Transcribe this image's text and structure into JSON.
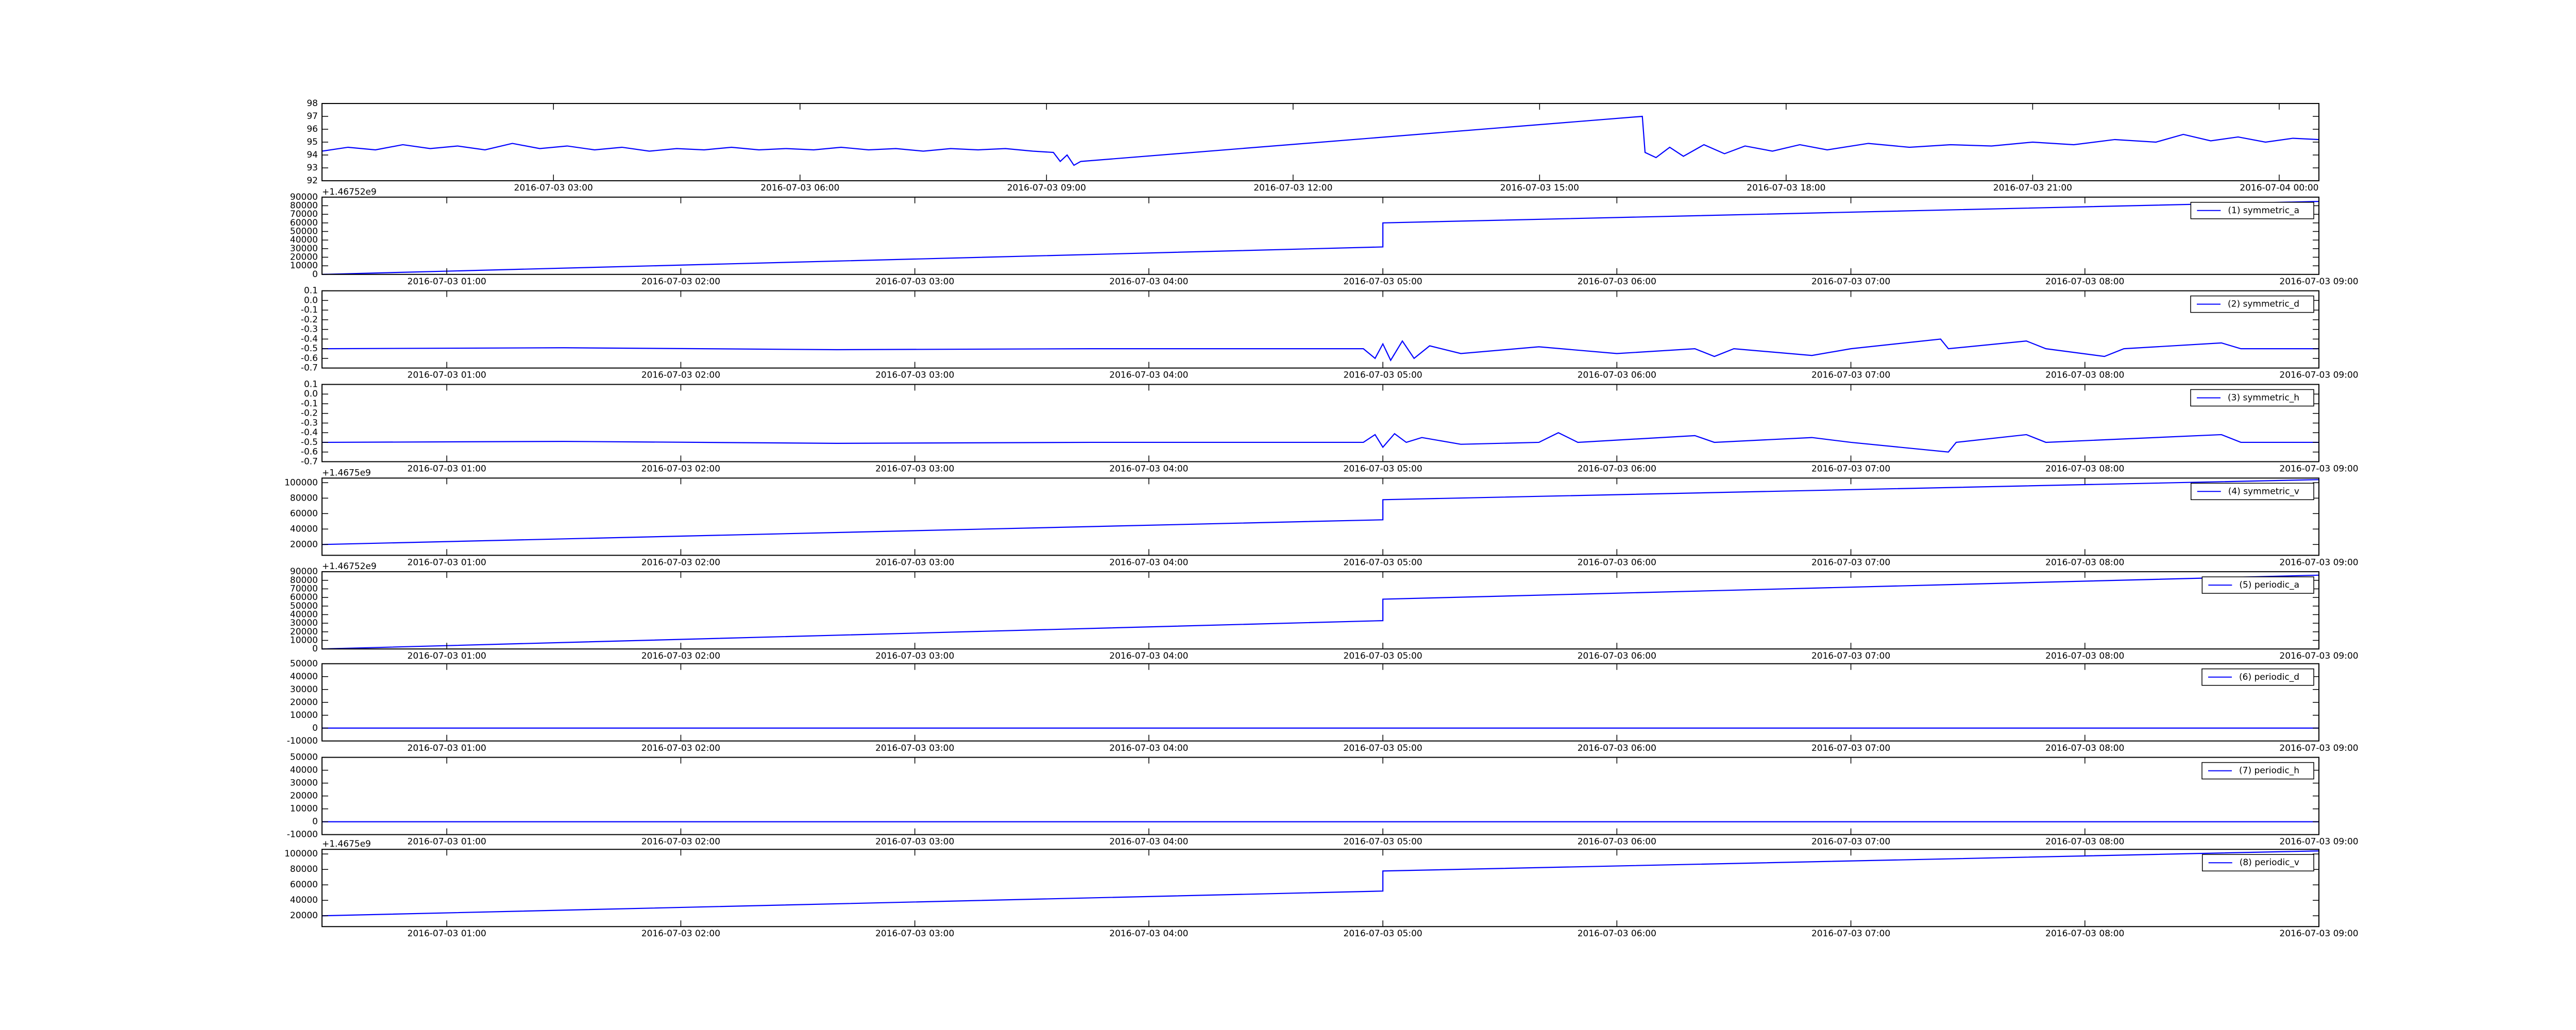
{
  "chart_data": [
    {
      "type": "line",
      "x": [
        "2016-07-03 00:11",
        "2016-07-03 00:30",
        "2016-07-03 00:50",
        "2016-07-03 01:10",
        "2016-07-03 01:30",
        "2016-07-03 01:50",
        "2016-07-03 02:10",
        "2016-07-03 02:30",
        "2016-07-03 02:50",
        "2016-07-03 03:10",
        "2016-07-03 03:30",
        "2016-07-03 03:50",
        "2016-07-03 04:10",
        "2016-07-03 04:30",
        "2016-07-03 04:50",
        "2016-07-03 05:10",
        "2016-07-03 05:30",
        "2016-07-03 05:50",
        "2016-07-03 06:10",
        "2016-07-03 06:30",
        "2016-07-03 06:50",
        "2016-07-03 07:10",
        "2016-07-03 07:30",
        "2016-07-03 07:50",
        "2016-07-03 08:10",
        "2016-07-03 08:30",
        "2016-07-03 08:50",
        "2016-07-03 09:05",
        "2016-07-03 09:10",
        "2016-07-03 09:15",
        "2016-07-03 09:20",
        "2016-07-03 09:25",
        "2016-07-03 16:15",
        "2016-07-03 16:17",
        "2016-07-03 16:25",
        "2016-07-03 16:35",
        "2016-07-03 16:45",
        "2016-07-03 17:00",
        "2016-07-03 17:15",
        "2016-07-03 17:30",
        "2016-07-03 17:50",
        "2016-07-03 18:10",
        "2016-07-03 18:30",
        "2016-07-03 19:00",
        "2016-07-03 19:30",
        "2016-07-03 20:00",
        "2016-07-03 20:30",
        "2016-07-03 21:00",
        "2016-07-03 21:30",
        "2016-07-03 22:00",
        "2016-07-03 22:30",
        "2016-07-03 22:50",
        "2016-07-03 23:10",
        "2016-07-03 23:30",
        "2016-07-03 23:50",
        "2016-07-04 00:10",
        "2016-07-04 00:29"
      ],
      "series": [
        {
          "color": "#0000ff",
          "values": [
            94.3,
            94.6,
            94.4,
            94.8,
            94.5,
            94.7,
            94.4,
            94.9,
            94.5,
            94.7,
            94.4,
            94.6,
            94.3,
            94.5,
            94.4,
            94.6,
            94.4,
            94.5,
            94.4,
            94.6,
            94.4,
            94.5,
            94.3,
            94.5,
            94.4,
            94.5,
            94.3,
            94.2,
            93.5,
            94.0,
            93.2,
            93.5,
            97.0,
            94.2,
            93.8,
            94.6,
            93.9,
            94.8,
            94.1,
            94.7,
            94.3,
            94.8,
            94.4,
            94.9,
            94.6,
            94.8,
            94.7,
            95.0,
            94.8,
            95.2,
            95.0,
            95.6,
            95.1,
            95.4,
            95.0,
            95.3,
            95.2
          ]
        }
      ],
      "xlim": [
        "2016-07-03 00:11",
        "2016-07-04 00:29"
      ],
      "xticks": [
        "2016-07-03 03:00",
        "2016-07-03 06:00",
        "2016-07-03 09:00",
        "2016-07-03 12:00",
        "2016-07-03 15:00",
        "2016-07-03 18:00",
        "2016-07-03 21:00",
        "2016-07-04 00:00"
      ],
      "ylim": [
        92,
        98
      ],
      "yticks": [
        92,
        93,
        94,
        95,
        96,
        97,
        98
      ]
    },
    {
      "type": "line",
      "offset_text": "+1.46752e9",
      "legend": "upper right",
      "x": [
        "2016-07-03 00:28",
        "2016-07-03 05:00",
        "2016-07-03 05:00",
        "2016-07-03 09:00"
      ],
      "series": [
        {
          "name": "(1) symmetric_a",
          "color": "#0000ff",
          "values": [
            0,
            32000,
            60000,
            85000
          ]
        }
      ],
      "xlim": [
        "2016-07-03 00:28",
        "2016-07-03 09:00"
      ],
      "xticks": [
        "2016-07-03 01:00",
        "2016-07-03 02:00",
        "2016-07-03 03:00",
        "2016-07-03 04:00",
        "2016-07-03 05:00",
        "2016-07-03 06:00",
        "2016-07-03 07:00",
        "2016-07-03 08:00",
        "2016-07-03 09:00"
      ],
      "ylim": [
        0,
        90000
      ],
      "yticks": [
        0,
        10000,
        20000,
        30000,
        40000,
        50000,
        60000,
        70000,
        80000,
        90000
      ]
    },
    {
      "type": "line",
      "legend": "upper right",
      "x": [
        "2016-07-03 00:28",
        "2016-07-03 01:30",
        "2016-07-03 02:40",
        "2016-07-03 03:45",
        "2016-07-03 04:55",
        "2016-07-03 04:58",
        "2016-07-03 05:00",
        "2016-07-03 05:02",
        "2016-07-03 05:05",
        "2016-07-03 05:08",
        "2016-07-03 05:12",
        "2016-07-03 05:20",
        "2016-07-03 05:40",
        "2016-07-03 06:00",
        "2016-07-03 06:20",
        "2016-07-03 06:25",
        "2016-07-03 06:30",
        "2016-07-03 06:50",
        "2016-07-03 07:00",
        "2016-07-03 07:23",
        "2016-07-03 07:25",
        "2016-07-03 07:45",
        "2016-07-03 07:50",
        "2016-07-03 08:05",
        "2016-07-03 08:10",
        "2016-07-03 08:35",
        "2016-07-03 08:40",
        "2016-07-03 09:00"
      ],
      "series": [
        {
          "name": "(2) symmetric_d",
          "color": "#0000ff",
          "values": [
            -0.5,
            -0.49,
            -0.51,
            -0.5,
            -0.5,
            -0.6,
            -0.45,
            -0.62,
            -0.42,
            -0.6,
            -0.47,
            -0.55,
            -0.48,
            -0.55,
            -0.5,
            -0.58,
            -0.5,
            -0.57,
            -0.5,
            -0.4,
            -0.5,
            -0.42,
            -0.5,
            -0.58,
            -0.5,
            -0.44,
            -0.5,
            -0.5
          ]
        }
      ],
      "xlim": [
        "2016-07-03 00:28",
        "2016-07-03 09:00"
      ],
      "xticks": [
        "2016-07-03 01:00",
        "2016-07-03 02:00",
        "2016-07-03 03:00",
        "2016-07-03 04:00",
        "2016-07-03 05:00",
        "2016-07-03 06:00",
        "2016-07-03 07:00",
        "2016-07-03 08:00",
        "2016-07-03 09:00"
      ],
      "ylim": [
        -0.7,
        0.1
      ],
      "yticks": [
        -0.7,
        -0.6,
        -0.5,
        -0.4,
        -0.3,
        -0.2,
        -0.1,
        {
          "value": 0,
          "label": "0.0"
        },
        0.1
      ]
    },
    {
      "type": "line",
      "legend": "upper right",
      "x": [
        "2016-07-03 00:28",
        "2016-07-03 01:30",
        "2016-07-03 02:40",
        "2016-07-03 03:45",
        "2016-07-03 04:55",
        "2016-07-03 04:58",
        "2016-07-03 05:00",
        "2016-07-03 05:03",
        "2016-07-03 05:06",
        "2016-07-03 05:10",
        "2016-07-03 05:20",
        "2016-07-03 05:40",
        "2016-07-03 05:45",
        "2016-07-03 05:50",
        "2016-07-03 06:20",
        "2016-07-03 06:25",
        "2016-07-03 06:50",
        "2016-07-03 07:00",
        "2016-07-03 07:25",
        "2016-07-03 07:27",
        "2016-07-03 07:45",
        "2016-07-03 07:50",
        "2016-07-03 08:35",
        "2016-07-03 08:40",
        "2016-07-03 09:00"
      ],
      "series": [
        {
          "name": "(3) symmetric_h",
          "color": "#0000ff",
          "values": [
            -0.5,
            -0.49,
            -0.51,
            -0.5,
            -0.5,
            -0.42,
            -0.55,
            -0.41,
            -0.5,
            -0.45,
            -0.52,
            -0.5,
            -0.4,
            -0.5,
            -0.43,
            -0.5,
            -0.45,
            -0.5,
            -0.6,
            -0.5,
            -0.42,
            -0.5,
            -0.42,
            -0.5,
            -0.5
          ]
        }
      ],
      "xlim": [
        "2016-07-03 00:28",
        "2016-07-03 09:00"
      ],
      "xticks": [
        "2016-07-03 01:00",
        "2016-07-03 02:00",
        "2016-07-03 03:00",
        "2016-07-03 04:00",
        "2016-07-03 05:00",
        "2016-07-03 06:00",
        "2016-07-03 07:00",
        "2016-07-03 08:00",
        "2016-07-03 09:00"
      ],
      "ylim": [
        -0.7,
        0.1
      ],
      "yticks": [
        -0.7,
        -0.6,
        -0.5,
        -0.4,
        -0.3,
        -0.2,
        -0.1,
        {
          "value": 0,
          "label": "0.0"
        },
        0.1
      ]
    },
    {
      "type": "line",
      "offset_text": "+1.4675e9",
      "legend": "upper right",
      "x": [
        "2016-07-03 00:28",
        "2016-07-03 05:00",
        "2016-07-03 05:00",
        "2016-07-03 09:00"
      ],
      "series": [
        {
          "name": "(4) symmetric_v",
          "color": "#0000ff",
          "values": [
            20000,
            52000,
            78000,
            104000
          ]
        }
      ],
      "xlim": [
        "2016-07-03 00:28",
        "2016-07-03 09:00"
      ],
      "xticks": [
        "2016-07-03 01:00",
        "2016-07-03 02:00",
        "2016-07-03 03:00",
        "2016-07-03 04:00",
        "2016-07-03 05:00",
        "2016-07-03 06:00",
        "2016-07-03 07:00",
        "2016-07-03 08:00",
        "2016-07-03 09:00"
      ],
      "ylim": [
        6000,
        106000
      ],
      "yticks": [
        20000,
        40000,
        60000,
        80000,
        100000
      ]
    },
    {
      "type": "line",
      "offset_text": "+1.46752e9",
      "legend": "upper right",
      "x": [
        "2016-07-03 00:28",
        "2016-07-03 05:00",
        "2016-07-03 05:00",
        "2016-07-03 09:00"
      ],
      "series": [
        {
          "name": "(5) periodic_a",
          "color": "#0000ff",
          "values": [
            0,
            33000,
            58000,
            86000
          ]
        }
      ],
      "xlim": [
        "2016-07-03 00:28",
        "2016-07-03 09:00"
      ],
      "xticks": [
        "2016-07-03 01:00",
        "2016-07-03 02:00",
        "2016-07-03 03:00",
        "2016-07-03 04:00",
        "2016-07-03 05:00",
        "2016-07-03 06:00",
        "2016-07-03 07:00",
        "2016-07-03 08:00",
        "2016-07-03 09:00"
      ],
      "ylim": [
        0,
        90000
      ],
      "yticks": [
        0,
        10000,
        20000,
        30000,
        40000,
        50000,
        60000,
        70000,
        80000,
        90000
      ]
    },
    {
      "type": "line",
      "legend": "upper right",
      "x": [
        "2016-07-03 00:28",
        "2016-07-03 09:00"
      ],
      "series": [
        {
          "name": "(6) periodic_d",
          "color": "#0000ff",
          "values": [
            0,
            0
          ]
        }
      ],
      "xlim": [
        "2016-07-03 00:28",
        "2016-07-03 09:00"
      ],
      "xticks": [
        "2016-07-03 01:00",
        "2016-07-03 02:00",
        "2016-07-03 03:00",
        "2016-07-03 04:00",
        "2016-07-03 05:00",
        "2016-07-03 06:00",
        "2016-07-03 07:00",
        "2016-07-03 08:00",
        "2016-07-03 09:00"
      ],
      "ylim": [
        -10000,
        50000
      ],
      "yticks": [
        -10000,
        0,
        10000,
        20000,
        30000,
        40000,
        50000
      ]
    },
    {
      "type": "line",
      "legend": "upper right",
      "x": [
        "2016-07-03 00:28",
        "2016-07-03 09:00"
      ],
      "series": [
        {
          "name": "(7) periodic_h",
          "color": "#0000ff",
          "values": [
            0,
            0
          ]
        }
      ],
      "xlim": [
        "2016-07-03 00:28",
        "2016-07-03 09:00"
      ],
      "xticks": [
        "2016-07-03 01:00",
        "2016-07-03 02:00",
        "2016-07-03 03:00",
        "2016-07-03 04:00",
        "2016-07-03 05:00",
        "2016-07-03 06:00",
        "2016-07-03 07:00",
        "2016-07-03 08:00",
        "2016-07-03 09:00"
      ],
      "ylim": [
        -10000,
        50000
      ],
      "yticks": [
        -10000,
        0,
        10000,
        20000,
        30000,
        40000,
        50000
      ]
    },
    {
      "type": "line",
      "offset_text": "+1.4675e9",
      "legend": "upper right",
      "x": [
        "2016-07-03 00:28",
        "2016-07-03 05:00",
        "2016-07-03 05:00",
        "2016-07-03 09:00"
      ],
      "series": [
        {
          "name": "(8) periodic_v",
          "color": "#0000ff",
          "values": [
            20000,
            52000,
            78000,
            104000
          ]
        }
      ],
      "xlim": [
        "2016-07-03 00:28",
        "2016-07-03 09:00"
      ],
      "xticks": [
        "2016-07-03 01:00",
        "2016-07-03 02:00",
        "2016-07-03 03:00",
        "2016-07-03 04:00",
        "2016-07-03 05:00",
        "2016-07-03 06:00",
        "2016-07-03 07:00",
        "2016-07-03 08:00",
        "2016-07-03 09:00"
      ],
      "ylim": [
        6000,
        106000
      ],
      "yticks": [
        20000,
        40000,
        60000,
        80000,
        100000
      ]
    }
  ]
}
